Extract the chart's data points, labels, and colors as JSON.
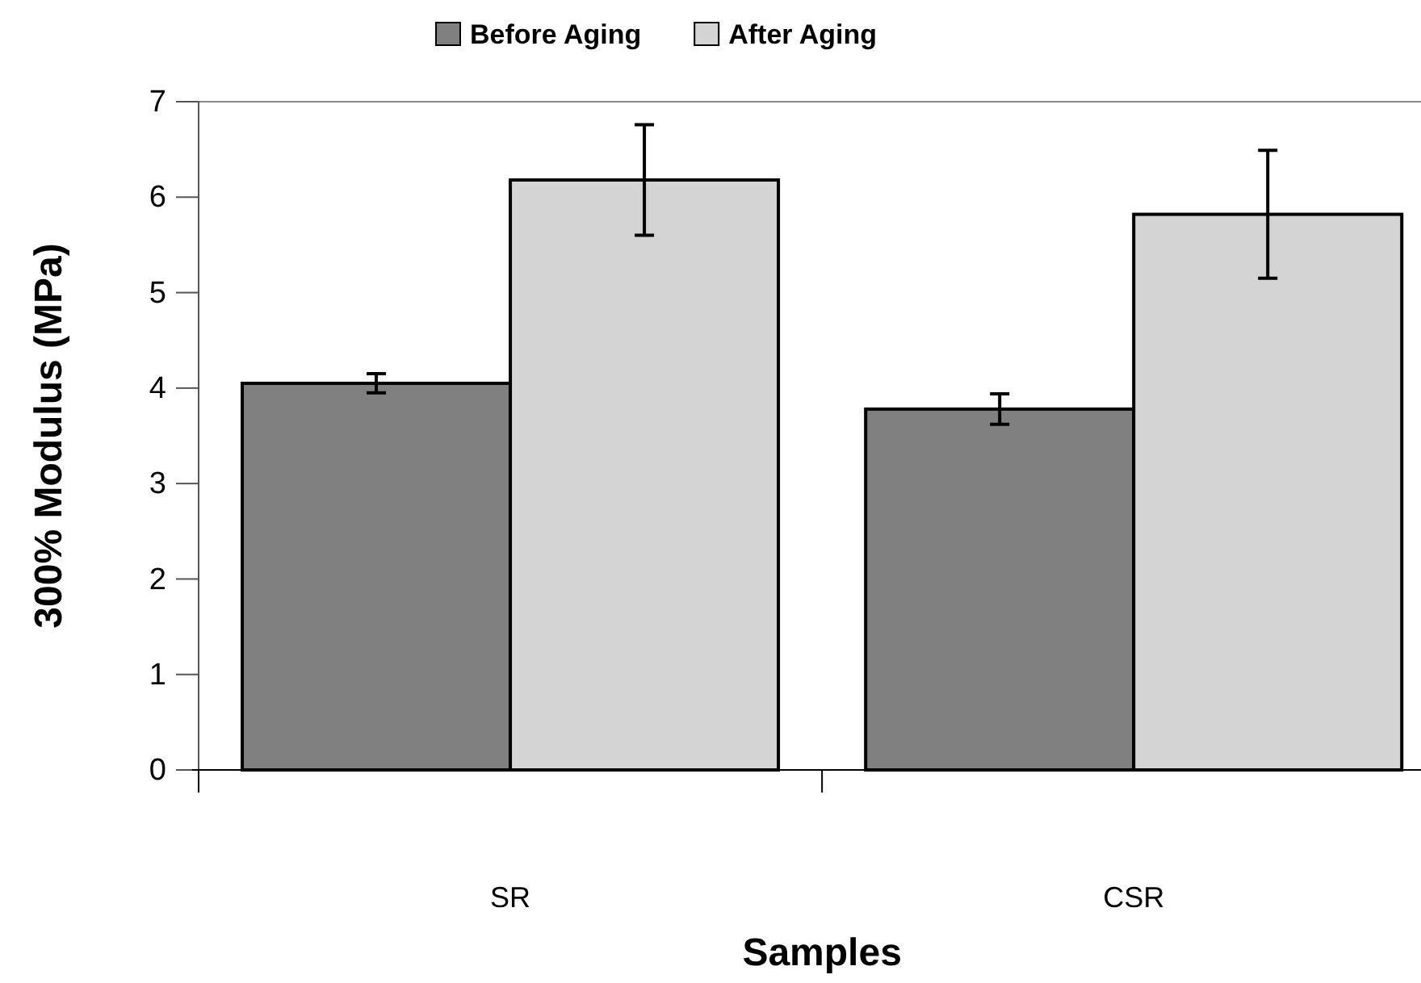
{
  "chart_data": {
    "type": "bar",
    "xlabel": "Samples",
    "ylabel": "300% Modulus (MPa)",
    "categories": [
      "SR",
      "CSR"
    ],
    "series": [
      {
        "name": "Before Aging",
        "color": "#808080",
        "values": [
          4.05,
          3.78
        ],
        "errors": [
          0.1,
          0.16
        ]
      },
      {
        "name": "After Aging",
        "color": "#d4d4d4",
        "values": [
          6.18,
          5.82
        ],
        "errors": [
          0.58,
          0.67
        ]
      }
    ],
    "ylim": [
      0,
      7
    ],
    "yticks": [
      0,
      1,
      2,
      3,
      4,
      5,
      6,
      7
    ],
    "grid": false,
    "legend": "top"
  }
}
